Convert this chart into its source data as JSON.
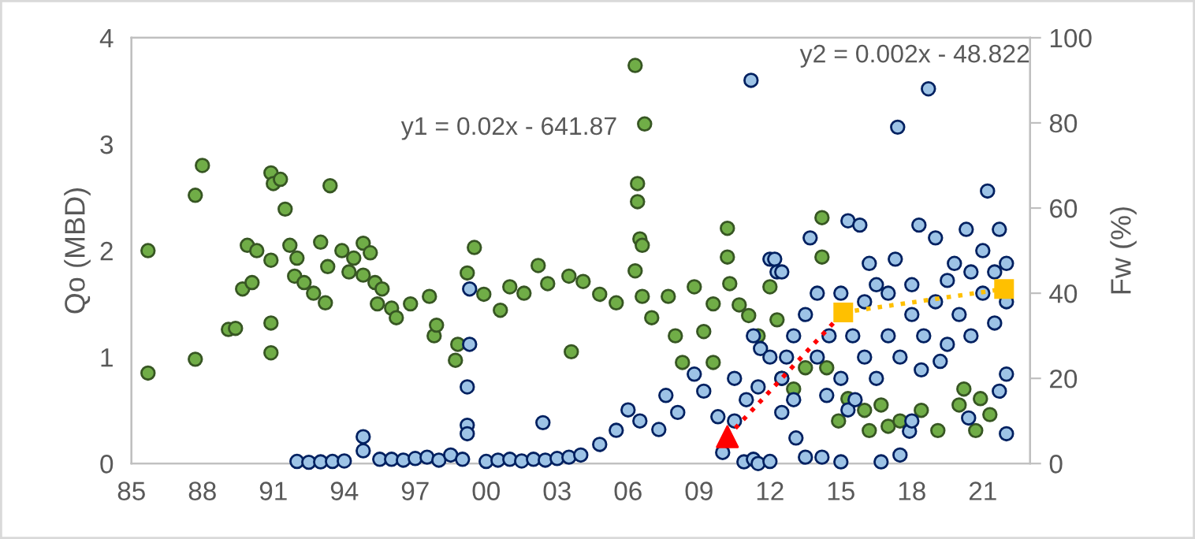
{
  "chart_data": {
    "type": "scatter",
    "ylabel": "Qo (MBD)",
    "y2label": "Fw (%)",
    "xlim": [
      1985,
      2023
    ],
    "xticks": [
      {
        "value": 1985,
        "label": "85"
      },
      {
        "value": 1988,
        "label": "88"
      },
      {
        "value": 1991,
        "label": "91"
      },
      {
        "value": 1994,
        "label": "94"
      },
      {
        "value": 1997,
        "label": "97"
      },
      {
        "value": 2000,
        "label": "00"
      },
      {
        "value": 2003,
        "label": "03"
      },
      {
        "value": 2006,
        "label": "06"
      },
      {
        "value": 2009,
        "label": "09"
      },
      {
        "value": 2012,
        "label": "12"
      },
      {
        "value": 2015,
        "label": "15"
      },
      {
        "value": 2018,
        "label": "18"
      },
      {
        "value": 2021,
        "label": "21"
      }
    ],
    "ylim": [
      0,
      4
    ],
    "yticks": [
      0,
      1,
      2,
      3,
      4
    ],
    "y2lim": [
      0,
      100
    ],
    "y2ticks": [
      0,
      20,
      40,
      60,
      80,
      100
    ],
    "grid": false,
    "legend": false,
    "annotations": [
      "y1 = 0.02x - 641.87",
      "y2 = 0.002x - 48.822"
    ],
    "series": [
      {
        "color": "#70ad47",
        "marker": "circle",
        "x": [
          1985.7,
          1985.7,
          1987.7,
          1988.0,
          1987.7,
          1989.1,
          1989.4,
          1989.7,
          1990.1,
          1989.9,
          1990.3,
          1990.9,
          1991.0,
          1991.3,
          1991.5,
          1990.9,
          1990.9,
          1990.9,
          1991.7,
          1992.0,
          1991.9,
          1992.3,
          1992.7,
          1993.2,
          1993.0,
          1993.4,
          1993.3,
          1993.9,
          1994.4,
          1994.8,
          1995.1,
          1994.2,
          1994.8,
          1995.3,
          1995.6,
          1995.4,
          1996.0,
          1996.2,
          1996.8,
          1997.6,
          1997.8,
          1997.9,
          1998.7,
          1998.8,
          1999.2,
          1999.5,
          1999.9,
          2000.6,
          2001.0,
          2001.6,
          2002.2,
          2002.6,
          2003.5,
          2003.6,
          2004.1,
          2004.8,
          2005.5,
          2006.3,
          2006.7,
          2006.4,
          2006.4,
          2006.5,
          2006.6,
          2006.3,
          2006.6,
          2007.0,
          2007.7,
          2008.0,
          2008.3,
          2008.8,
          2009.2,
          2009.6,
          2009.6,
          2010.2,
          2010.2,
          2010.3,
          2010.7,
          2011.1,
          2011.5,
          2012.0,
          2012.3,
          2012.5,
          2013.0,
          2013.5,
          2014.2,
          2014.2,
          2014.4,
          2014.9,
          2015.3,
          2016.0,
          2016.2,
          2016.7,
          2017.0,
          2017.5,
          2018.4,
          2019.1,
          2020.0,
          2020.2,
          2020.7,
          2020.9,
          2021.3
        ],
        "values": [
          2.0,
          0.85,
          2.52,
          2.8,
          0.98,
          1.26,
          1.27,
          1.64,
          1.7,
          2.05,
          2.0,
          2.73,
          2.63,
          2.67,
          2.39,
          1.91,
          1.32,
          1.04,
          2.05,
          1.93,
          1.76,
          1.7,
          1.6,
          1.51,
          2.08,
          2.61,
          1.85,
          2.0,
          1.93,
          2.07,
          1.98,
          1.8,
          1.77,
          1.7,
          1.64,
          1.5,
          1.46,
          1.37,
          1.5,
          1.57,
          1.2,
          1.3,
          0.97,
          1.12,
          1.79,
          2.03,
          1.59,
          1.44,
          1.66,
          1.6,
          1.86,
          1.69,
          1.76,
          1.05,
          1.71,
          1.59,
          1.51,
          3.74,
          3.19,
          2.63,
          2.46,
          2.11,
          2.05,
          1.81,
          1.57,
          1.37,
          1.57,
          1.2,
          0.95,
          1.66,
          1.24,
          0.95,
          1.5,
          2.21,
          1.94,
          1.69,
          1.49,
          1.39,
          1.2,
          1.66,
          1.35,
          0.8,
          0.7,
          0.9,
          2.31,
          1.94,
          0.9,
          0.4,
          0.61,
          0.5,
          0.31,
          0.55,
          0.35,
          0.4,
          0.5,
          0.31,
          0.55,
          0.7,
          0.31,
          0.61,
          0.46
        ]
      },
      {
        "axis": "y2",
        "color": "#9dc3e6",
        "marker": "circle",
        "x": [
          1992.0,
          1992.5,
          1993.0,
          1993.5,
          1994.0,
          1994.8,
          1994.8,
          1995.5,
          1996.0,
          1996.5,
          1997.0,
          1997.5,
          1998.0,
          1998.5,
          1999.0,
          1999.3,
          1999.3,
          1999.2,
          1999.2,
          1999.2,
          2000.0,
          2000.5,
          2001.0,
          2001.5,
          2002.0,
          2002.4,
          2002.5,
          2003.0,
          2003.5,
          2004.0,
          2004.8,
          2005.5,
          2006.0,
          2006.5,
          2007.3,
          2007.6,
          2008.1,
          2008.8,
          2009.2,
          2009.8,
          2010.0,
          2010.5,
          2010.5,
          2010.9,
          2011.0,
          2011.2,
          2011.3,
          2011.3,
          2011.5,
          2011.5,
          2011.6,
          2012.0,
          2012.0,
          2012.0,
          2012.2,
          2012.3,
          2012.5,
          2012.5,
          2012.5,
          2012.7,
          2013.0,
          2013.0,
          2013.1,
          2013.5,
          2013.5,
          2013.7,
          2014.0,
          2014.0,
          2014.2,
          2014.4,
          2014.5,
          2015.0,
          2015.0,
          2015.0,
          2015.3,
          2015.3,
          2015.5,
          2015.6,
          2015.8,
          2016.0,
          2016.0,
          2016.2,
          2016.5,
          2016.5,
          2016.7,
          2017.0,
          2017.0,
          2017.3,
          2017.4,
          2017.5,
          2017.5,
          2017.9,
          2018.0,
          2018.0,
          2018.0,
          2018.3,
          2018.4,
          2018.5,
          2018.7,
          2019.0,
          2019.0,
          2019.2,
          2019.5,
          2019.5,
          2019.8,
          2020.0,
          2020.3,
          2020.4,
          2020.5,
          2020.5,
          2021.0,
          2021.0,
          2021.2,
          2021.5,
          2021.5,
          2021.7,
          2021.7,
          2022.0,
          2022.0,
          2022.0,
          2022.0
        ],
        "values": [
          0.5,
          0.3,
          0.4,
          0.5,
          0.6,
          6.3,
          3,
          1,
          1,
          0.8,
          1.2,
          1.5,
          0.8,
          2,
          1,
          41,
          28,
          18,
          9,
          7,
          0.5,
          0.8,
          1,
          0.6,
          1,
          9.6,
          0.8,
          1.2,
          1.5,
          2,
          4.5,
          7.8,
          12.6,
          10,
          8,
          16,
          12,
          21,
          17,
          11,
          2.6,
          10,
          20,
          0.4,
          15,
          90,
          30,
          1,
          0,
          18,
          27,
          48,
          25,
          0.5,
          48,
          45,
          45,
          12,
          20,
          25,
          15,
          30,
          6,
          35,
          1.5,
          53,
          25,
          40,
          1.5,
          16,
          30,
          20,
          40,
          0.4,
          57,
          12.6,
          30,
          15,
          56,
          25,
          38,
          47,
          20,
          42,
          0.4,
          30,
          40,
          48,
          79,
          25,
          2,
          7.6,
          10,
          35,
          42,
          56,
          22,
          30,
          88,
          53,
          38,
          24,
          28,
          43,
          47,
          35,
          55,
          10.7,
          45,
          30,
          40,
          50,
          64,
          33,
          45,
          17,
          55,
          7,
          21,
          38,
          47
        ]
      },
      {
        "axis": "y2",
        "color": "#ff0000",
        "marker": "triangle",
        "x": [
          2010.2
        ],
        "values": [
          6.3
        ]
      },
      {
        "type": "line",
        "axis": "y2",
        "color": "#ff0000",
        "marker": "none",
        "line_style": "dotted",
        "x": [
          2010.2,
          2015.1
        ],
        "values": [
          6.3,
          35.5
        ]
      },
      {
        "type": "line",
        "axis": "y2",
        "color": "#ffc000",
        "marker": "square",
        "line_style": "dotted",
        "x": [
          2015.1,
          2021.9
        ],
        "values": [
          35.5,
          41
        ]
      }
    ]
  }
}
